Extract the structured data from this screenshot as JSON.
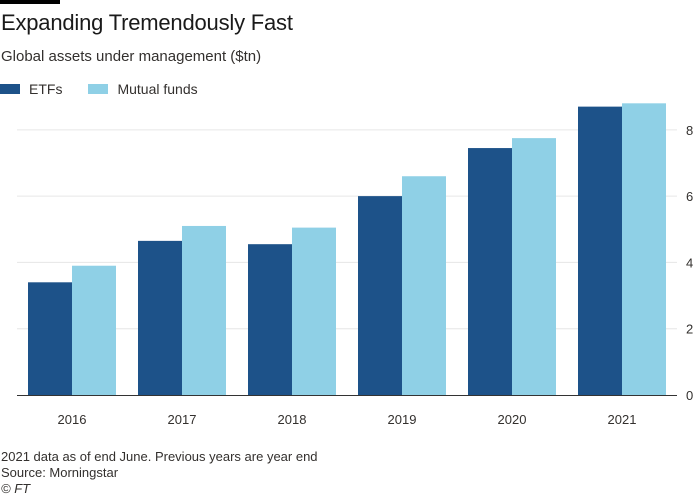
{
  "header": {
    "title": "Expanding Tremendously Fast",
    "subtitle": "Global assets under management ($tn)"
  },
  "footer": {
    "note": "2021 data as of end June. Previous years are year end",
    "source": "Source: Morningstar",
    "credit": "© FT"
  },
  "colors": {
    "etfs": "#1d5289",
    "mutual_funds": "#8fd0e6",
    "grid": "#e6e6e6",
    "axis": "#333333"
  },
  "chart_data": {
    "type": "bar",
    "title": "Expanding Tremendously Fast",
    "subtitle": "Global assets under management ($tn)",
    "categories": [
      "2016",
      "2017",
      "2018",
      "2019",
      "2020",
      "2021"
    ],
    "series": [
      {
        "name": "ETFs",
        "values": [
          3.4,
          4.65,
          4.55,
          6.0,
          7.45,
          8.7
        ]
      },
      {
        "name": "Mutual funds",
        "values": [
          3.9,
          5.1,
          5.05,
          6.6,
          7.75,
          8.8
        ]
      }
    ],
    "ylim": [
      0,
      8.9
    ],
    "yticks": [
      0,
      2,
      4,
      6,
      8
    ],
    "xlabel": "",
    "ylabel": "",
    "y_axis_position": "right",
    "grid": true,
    "legend": "top-left"
  }
}
